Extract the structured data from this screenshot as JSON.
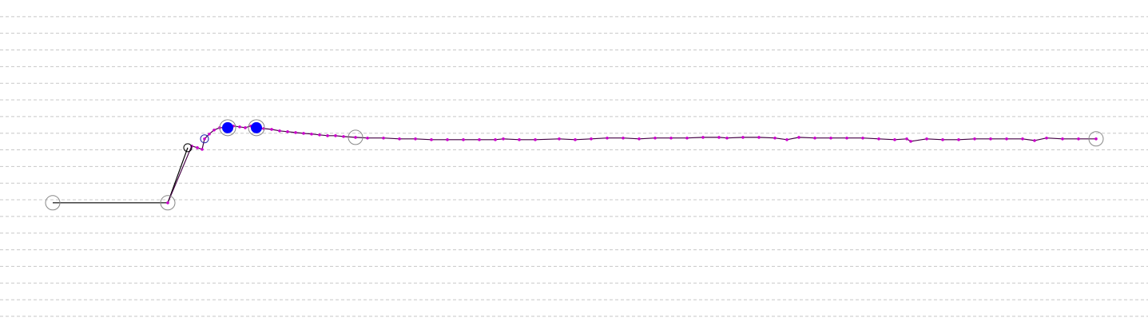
{
  "chart_data": {
    "type": "line",
    "xlim": [
      0,
      1437
    ],
    "ylim": [
      -0.82,
      19
    ],
    "yticks": [
      0,
      1,
      2,
      3,
      4,
      5,
      6,
      7,
      8,
      9,
      10,
      11,
      12,
      13,
      14,
      15,
      16,
      17,
      18
    ],
    "grid": true,
    "series": [
      {
        "color": "#000000",
        "line": true,
        "marker": "none",
        "x": [
          66,
          210,
          235
        ],
        "values": [
          6.82,
          6.82,
          10.13
        ]
      },
      {
        "color": "#440044",
        "line": true,
        "marker": "dot",
        "marker_color": "#cc00cc",
        "x": [
          210,
          240,
          247,
          253,
          256,
          262,
          268,
          275,
          285,
          292,
          300,
          307,
          314,
          321,
          330,
          340,
          350,
          360,
          370,
          380,
          390,
          400,
          410,
          420,
          430,
          445,
          460,
          480,
          500,
          520,
          540,
          560,
          580,
          600,
          620,
          630,
          650,
          670,
          700,
          720,
          740,
          760,
          780,
          800,
          820,
          840,
          860,
          880,
          900,
          910,
          930,
          950,
          970,
          985,
          1000,
          1020,
          1040,
          1060,
          1080,
          1100,
          1120,
          1135,
          1140,
          1160,
          1180,
          1200,
          1220,
          1240,
          1260,
          1280,
          1295,
          1310,
          1330,
          1350,
          1372
        ],
        "values": [
          6.82,
          10.23,
          10.13,
          10.03,
          10.66,
          10.95,
          11.19,
          11.33,
          11.33,
          11.43,
          11.38,
          11.33,
          11.43,
          11.33,
          11.28,
          11.23,
          11.14,
          11.09,
          11.04,
          10.99,
          10.95,
          10.9,
          10.85,
          10.85,
          10.8,
          10.75,
          10.71,
          10.71,
          10.66,
          10.66,
          10.61,
          10.61,
          10.61,
          10.61,
          10.61,
          10.66,
          10.61,
          10.61,
          10.66,
          10.61,
          10.66,
          10.71,
          10.71,
          10.66,
          10.71,
          10.71,
          10.71,
          10.75,
          10.75,
          10.71,
          10.75,
          10.75,
          10.71,
          10.61,
          10.75,
          10.71,
          10.71,
          10.71,
          10.71,
          10.66,
          10.61,
          10.66,
          10.51,
          10.66,
          10.61,
          10.61,
          10.66,
          10.66,
          10.66,
          10.66,
          10.56,
          10.71,
          10.66,
          10.66,
          10.66
        ]
      },
      {
        "color": "#888888",
        "line": false,
        "marker": "ring",
        "marker_size": 9,
        "x": [
          66,
          210,
          445,
          1372
        ],
        "values": [
          6.82,
          6.82,
          10.75,
          10.66
        ]
      },
      {
        "color": "#000000",
        "line": false,
        "marker": "ring",
        "marker_size": 5,
        "x": [
          235
        ],
        "values": [
          10.13
        ]
      },
      {
        "color": "#2222aa",
        "line": false,
        "marker": "ring",
        "marker_size": 5,
        "x": [
          256
        ],
        "values": [
          10.66
        ]
      },
      {
        "color": "#0000ff",
        "line": false,
        "marker": "filled",
        "marker_size": 7,
        "x": [
          285,
          321
        ],
        "values": [
          11.33,
          11.33
        ]
      },
      {
        "color": "#888888",
        "line": false,
        "marker": "ring",
        "marker_size": 10,
        "x": [
          285,
          321
        ],
        "values": [
          11.33,
          11.33
        ]
      }
    ]
  }
}
